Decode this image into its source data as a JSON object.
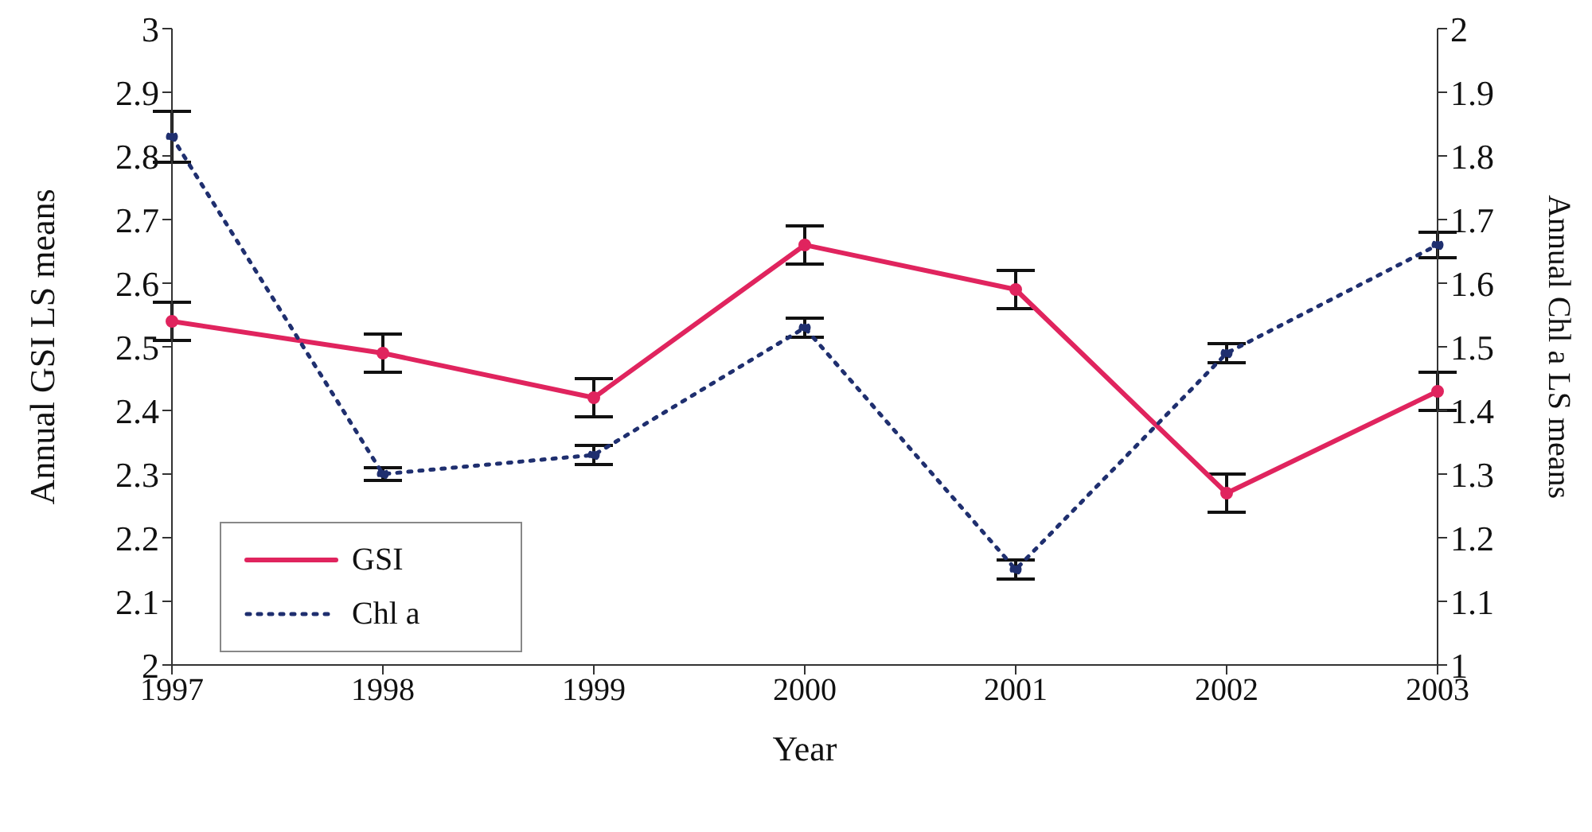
{
  "chart_data": {
    "type": "line",
    "xlabel": "Year",
    "ylabel": "Annual GSI LS means",
    "y2label": "Annual Chl a LS means",
    "categories": [
      "1997",
      "1998",
      "1999",
      "2000",
      "2001",
      "2002",
      "2003"
    ],
    "series": [
      {
        "name": "GSI",
        "color": "#e0245e",
        "values": [
          2.54,
          2.49,
          2.42,
          2.66,
          2.59,
          2.27,
          2.43
        ],
        "errors": [
          0.03,
          0.03,
          0.03,
          0.03,
          0.03,
          0.03,
          0.03
        ],
        "line_style": "solid",
        "marker": "circle"
      },
      {
        "name": "Chl a",
        "color": "#1f2f6f",
        "values": [
          1.83,
          1.3,
          1.33,
          1.53,
          1.15,
          1.49,
          1.66
        ],
        "errors": [
          0.04,
          0.01,
          0.015,
          0.015,
          0.015,
          0.015,
          0.02
        ],
        "axis": "y2",
        "line_style": "dotted",
        "marker": "circle"
      }
    ],
    "ylim": [
      2,
      3
    ],
    "yticks": [
      2,
      2.1,
      2.2,
      2.3,
      2.4,
      2.5,
      2.6,
      2.7,
      2.8,
      2.9,
      3
    ],
    "y2lim": [
      1,
      2
    ],
    "y2ticks": [
      1,
      1.1,
      1.2,
      1.3,
      1.4,
      1.5,
      1.6,
      1.7,
      1.8,
      1.9,
      2
    ],
    "grid": false,
    "legend": "bottom left"
  }
}
